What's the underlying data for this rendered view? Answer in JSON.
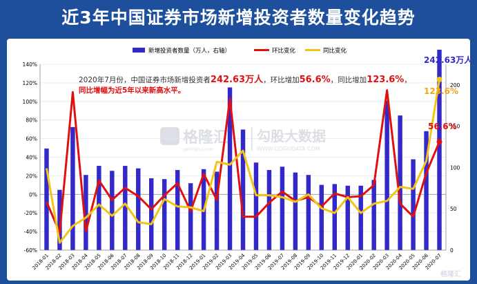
{
  "title": "近3年中国证券市场新增投资者数量变化趋势",
  "chart_data": {
    "type": "bar",
    "title": "",
    "categories": [
      "2018-01",
      "2018-02",
      "2018-03",
      "2018-04",
      "2018-05",
      "2018-06",
      "2018-07",
      "2018-08",
      "2018-09",
      "2018-10",
      "2018-11",
      "2018-12",
      "2019-01",
      "2019-02",
      "2019-03",
      "2019-04",
      "2019-05",
      "2019-06",
      "2019-07",
      "2019-08",
      "2019-09",
      "2019-10",
      "2019-11",
      "2019-12",
      "2020-01",
      "2020-02",
      "2020-03",
      "2020-04",
      "2020-05",
      "2020-06",
      "2020-07"
    ],
    "legend": [
      "新增投资者数量（万人，右轴）",
      "环比变化",
      "同比变化"
    ],
    "legend_position": "top",
    "colors": {
      "bars": "#3329c9",
      "mom": "#e01010",
      "yoy": "#f2c416"
    },
    "y_left_ticks": [
      "-60%",
      "-40%",
      "-20%",
      "0%",
      "20%",
      "40%",
      "60%",
      "80%",
      "100%",
      "120%",
      "140%"
    ],
    "y_left_lim": [
      -60,
      140
    ],
    "y_right_ticks": [
      "0",
      "50",
      "100",
      "150",
      "200"
    ],
    "y_right_lim": [
      0,
      225
    ],
    "series": [
      {
        "name": "新增投资者数量（万人，右轴）",
        "type": "bar",
        "axis": "right",
        "values": [
          123,
          73,
          149,
          91,
          102,
          96,
          102,
          99,
          87,
          86,
          97,
          81,
          98,
          95,
          197,
          146,
          106,
          97,
          101,
          94,
          91,
          79,
          80,
          78,
          78,
          85,
          181,
          163,
          110,
          144,
          242.63
        ]
      },
      {
        "name": "环比变化",
        "type": "line",
        "axis": "left",
        "values": [
          -8,
          -41,
          110,
          -40,
          15,
          -6,
          7,
          -2,
          -16,
          -1,
          12,
          -18,
          22,
          -6,
          103,
          -24,
          -24,
          -9,
          3,
          -7,
          -3,
          -13,
          1,
          -3,
          -2,
          10,
          112,
          -10,
          -24,
          23,
          56.6
        ]
      },
      {
        "name": "同比变化",
        "type": "line",
        "axis": "left",
        "values": [
          28,
          -52,
          -34,
          -25,
          -11,
          -23,
          -10,
          -30,
          -32,
          -5,
          -13,
          -14,
          -18,
          35,
          32,
          47,
          -1,
          -1,
          -3,
          -8,
          0,
          -15,
          -20,
          -3,
          -20,
          -10,
          -7,
          8,
          6,
          36,
          123.6
        ]
      }
    ],
    "annotations": {
      "bar_last": "242.63万人",
      "yoy_last": "123.6%",
      "mom_last": "56.6%"
    }
  },
  "note": {
    "line1_a": "2020年7月份，中国证券市场新增投资者",
    "line1_b": "242.63万人",
    "line1_c": "，环比增加",
    "line1_d": "56.6%",
    "line1_e": "，同比增加",
    "line1_f": "123.6%",
    "line1_g": "，",
    "line2": "同比增幅为近5年以来新高水平。"
  },
  "watermark": {
    "brand_cn": "格隆汇",
    "brand_url": "gelonghui.com",
    "brand2": "勾股大数据",
    "brand2_url": "WWW.GOGUDATA.COM",
    "corner": "格隆汇"
  }
}
